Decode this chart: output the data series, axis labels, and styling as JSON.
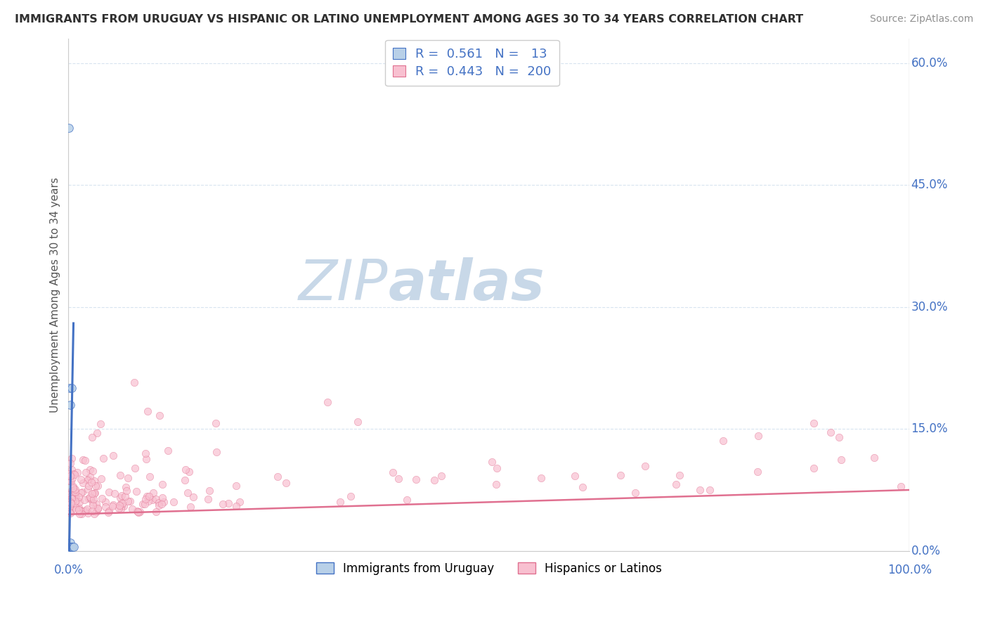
{
  "title": "IMMIGRANTS FROM URUGUAY VS HISPANIC OR LATINO UNEMPLOYMENT AMONG AGES 30 TO 34 YEARS CORRELATION CHART",
  "source": "Source: ZipAtlas.com",
  "ylabel": "Unemployment Among Ages 30 to 34 years",
  "r_uruguay": 0.561,
  "n_uruguay": 13,
  "r_hispanic": 0.443,
  "n_hispanic": 200,
  "blue_fill": "#b8d0e8",
  "blue_line": "#4472c4",
  "pink_fill": "#f8c0d0",
  "pink_line": "#e07090",
  "title_color": "#303030",
  "source_color": "#909090",
  "watermark_zip_color": "#c8d8e8",
  "watermark_atlas_color": "#c8d8e8",
  "legend_text_color": "#4472c4",
  "axis_tick_color": "#4472c4",
  "grid_color": "#d8e4f0",
  "background": "#ffffff",
  "xlim": [
    0.0,
    1.0
  ],
  "ylim": [
    0.0,
    0.63
  ],
  "yticks": [
    0.0,
    0.15,
    0.3,
    0.45,
    0.6
  ],
  "ytick_labels": [
    "0.0%",
    "15.0%",
    "30.0%",
    "45.0%",
    "60.0%"
  ],
  "xtick_labels_shown": [
    "0.0%",
    "100.0%"
  ],
  "xticks_shown": [
    0.0,
    1.0
  ],
  "figsize": [
    14.06,
    8.92
  ],
  "dpi": 100,
  "uruguay_x": [
    0.0005,
    0.001,
    0.0013,
    0.0015,
    0.0018,
    0.002,
    0.0022,
    0.0025,
    0.003,
    0.0035,
    0.004,
    0.005,
    0.006
  ],
  "uruguay_y": [
    0.52,
    0.0,
    0.005,
    0.2,
    0.18,
    0.01,
    0.005,
    0.005,
    0.005,
    0.2,
    0.005,
    0.005,
    0.005
  ],
  "uru_reg_slope": 55.0,
  "uru_reg_intercept": -0.05,
  "his_reg_slope": 0.03,
  "his_reg_intercept": 0.045
}
